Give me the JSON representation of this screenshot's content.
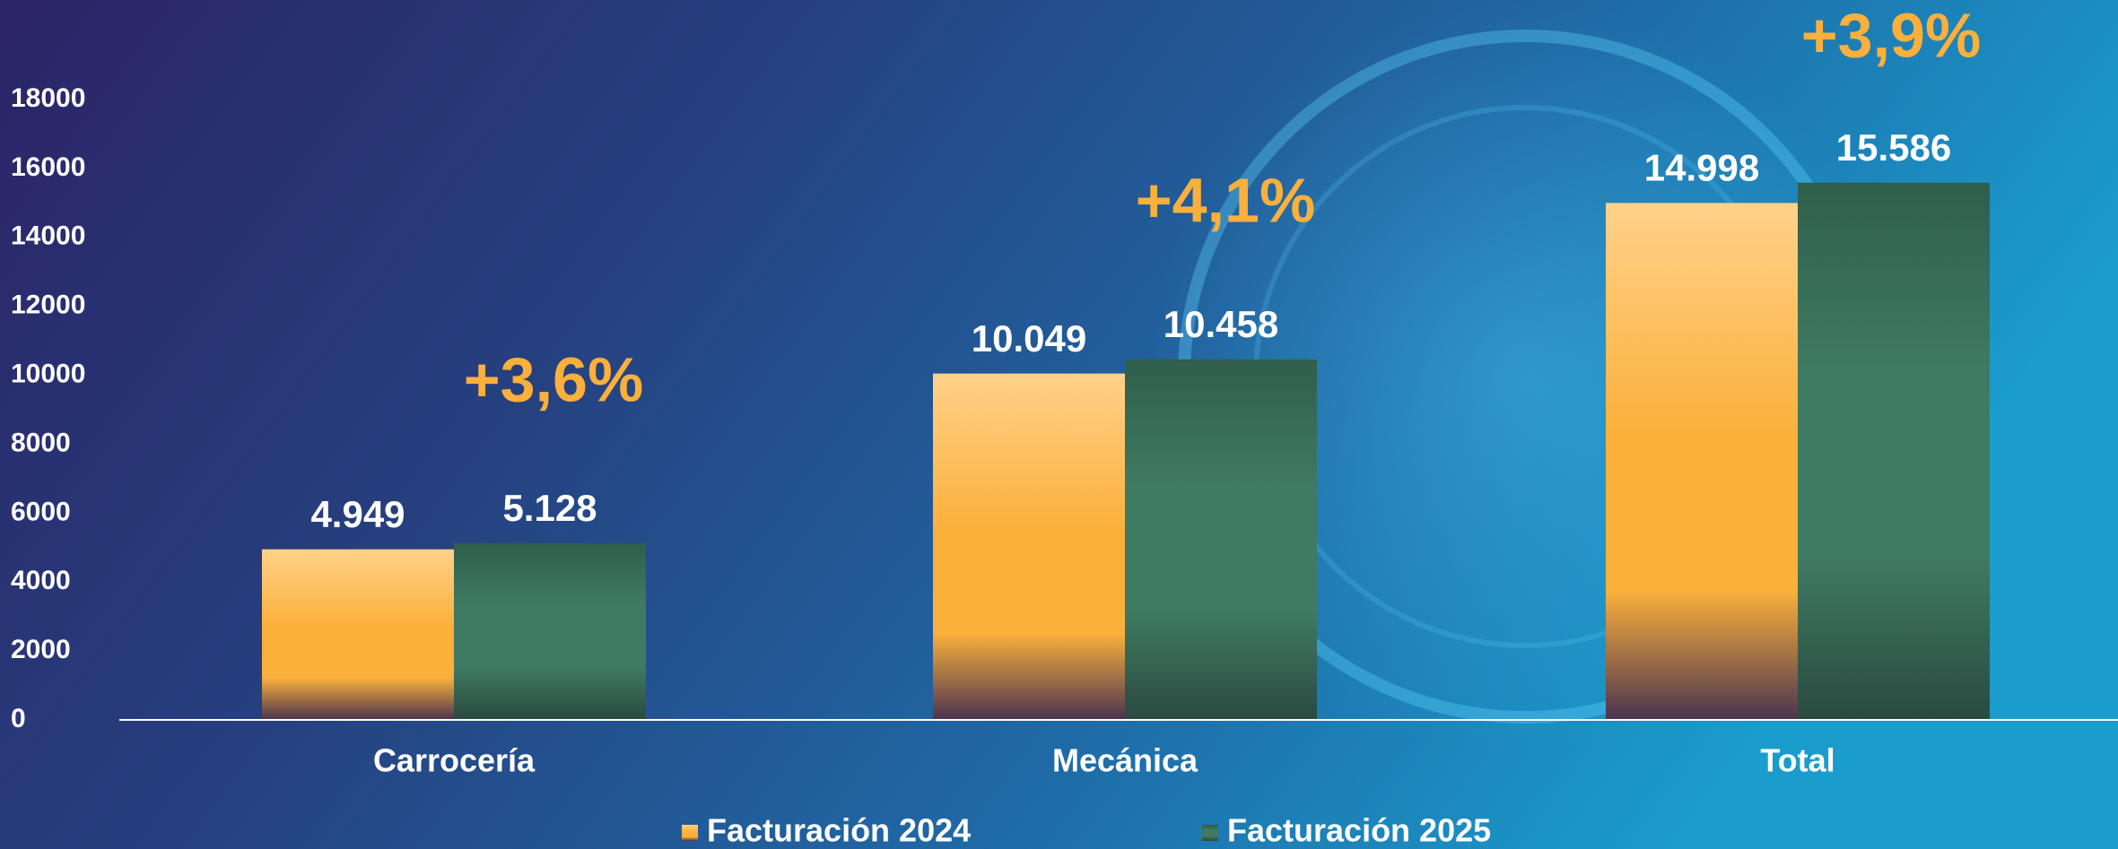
{
  "chart_data": {
    "type": "bar",
    "categories": [
      "Carrocería",
      "Mecánica",
      "Total"
    ],
    "series": [
      {
        "name": "Facturación 2024",
        "color": "#fbb03b",
        "values": [
          4949,
          10049,
          14998
        ],
        "value_labels": [
          "4.949",
          "10.049",
          "14.998"
        ]
      },
      {
        "name": "Facturación 2025",
        "color": "#3f7a62",
        "values": [
          5128,
          10458,
          15586
        ],
        "value_labels": [
          "5.128",
          "10.458",
          "15.586"
        ]
      }
    ],
    "annotations": [
      "+3,6%",
      "+4,1%",
      "+3,9%"
    ],
    "ylim": [
      0,
      18000
    ],
    "yticks": [
      0,
      2000,
      4000,
      6000,
      8000,
      10000,
      12000,
      14000,
      16000,
      18000
    ],
    "grid": false,
    "legend": "bottom"
  }
}
